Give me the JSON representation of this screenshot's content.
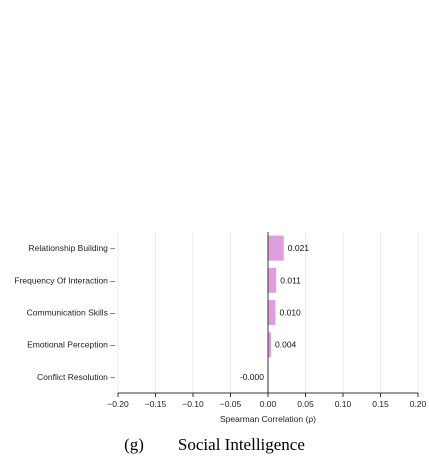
{
  "chart_data": {
    "type": "bar",
    "orientation": "horizontal",
    "categories": [
      "Relationship Building",
      "Frequency Of Interaction",
      "Communication Skills",
      "Emotional Perception",
      "Conflict Resolution"
    ],
    "values": [
      0.021,
      0.011,
      0.01,
      0.004,
      -0.0
    ],
    "value_labels": [
      "0.021",
      "0.011",
      "0.010",
      "0.004",
      "-0.000"
    ],
    "xlabel": "Spearman Correlation (ρ)",
    "ylabel": "",
    "xlim": [
      -0.2,
      0.2
    ],
    "xticks": [
      "−0.20",
      "−0.15",
      "−0.10",
      "−0.05",
      "0.00",
      "0.05",
      "0.10",
      "0.15",
      "0.20"
    ],
    "xtick_values": [
      -0.2,
      -0.15,
      -0.1,
      -0.05,
      0.0,
      0.05,
      0.1,
      0.15,
      0.2
    ],
    "bar_color": "#dda0dd",
    "grid": "vertical-light"
  },
  "caption": {
    "panel": "(g)",
    "title": "Social Intelligence"
  }
}
